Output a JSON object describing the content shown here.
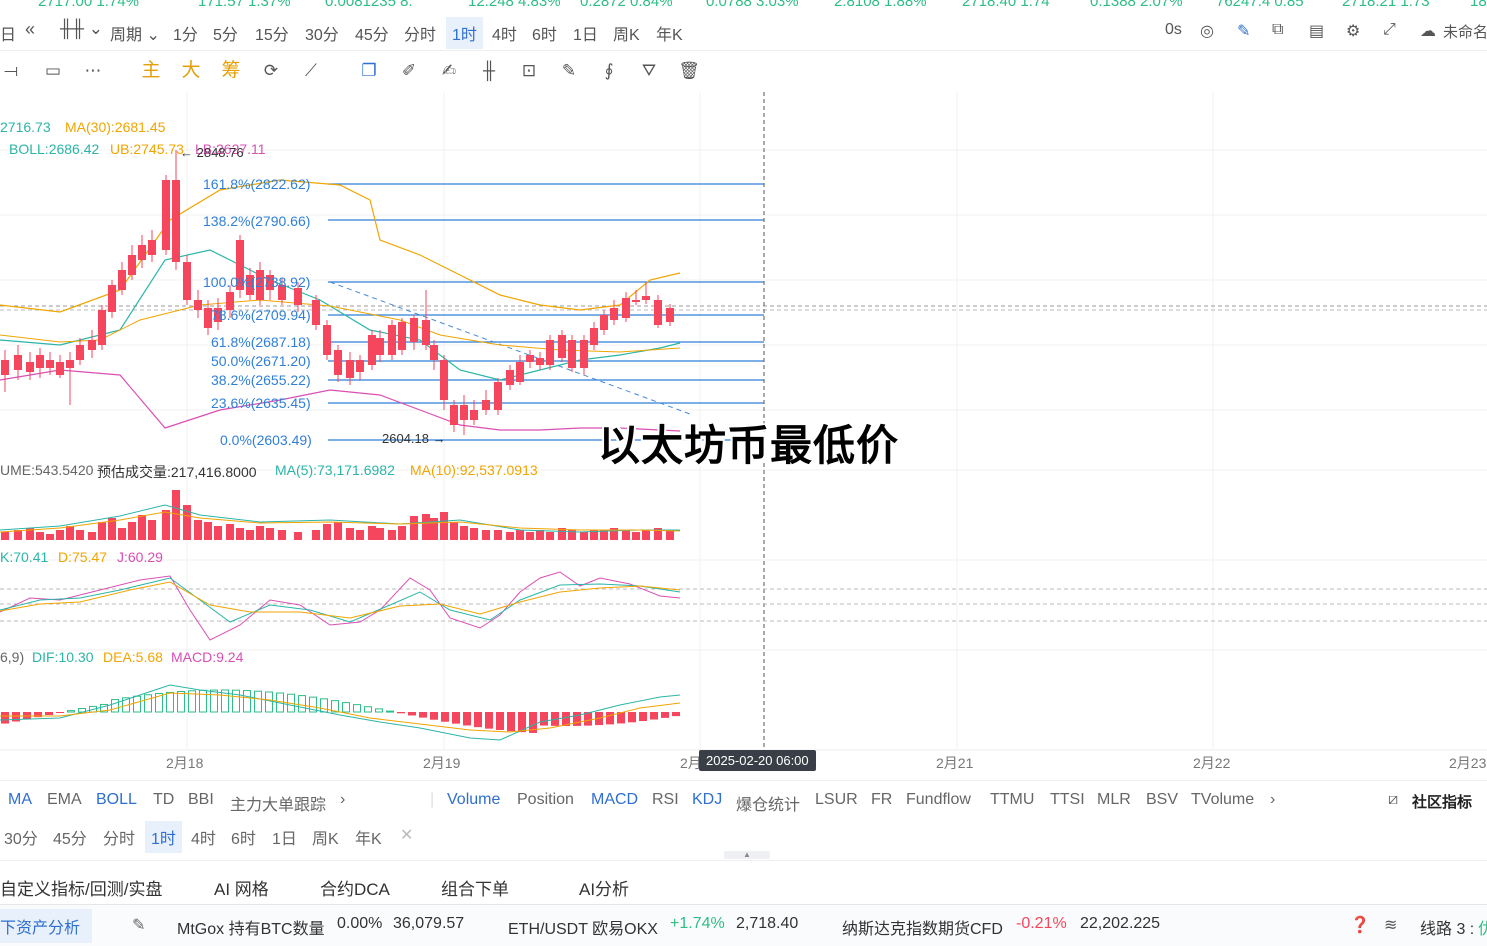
{
  "ticker": [
    "2717.00 1.74%",
    "171.57 1.37%",
    "0.0081235 8.",
    "12.248 4.83%",
    "0.2872 0.84%",
    "0.0788 3.03%",
    "2.8108 1.88%",
    "2718.40 1.74",
    "0.1388 2.07%",
    "76247.4 0.85",
    "2718.21 1.73",
    "18"
  ],
  "toolbar": {
    "left_glyph": "日",
    "period_label": "周期",
    "periods": [
      "1分",
      "5分",
      "15分",
      "30分",
      "45分",
      "分时",
      "1时",
      "4时",
      "6时",
      "1日",
      "周K",
      "年K"
    ],
    "selected_period": "1时",
    "countdown": "0s",
    "account": "未命名"
  },
  "tools": {
    "zhu": "主",
    "da": "大",
    "chou": "筹"
  },
  "indicators": {
    "ma_line": "2716.73",
    "ma30": "MA(30):2681.45",
    "boll": "BOLL:2686.42",
    "ub": "UB:2745.73",
    "lb": "LB:2627.11",
    "high_label": "← 2848.76",
    "low_label": "2604.18 →",
    "volume": "UME:543.5420",
    "est_volume": "预估成交量:217,416.8000",
    "vol_ma5": "MA(5):73,171.6982",
    "vol_ma10": "MA(10):92,537.0913",
    "kdj_k": "K:70.41",
    "kdj_d": "D:75.47",
    "kdj_j": "J:60.29",
    "macd_params": "6,9)",
    "dif": "DIF:10.30",
    "dea": "DEA:5.68",
    "macd": "MACD:9.24"
  },
  "fib": [
    {
      "label": "161.8%(2822.62)"
    },
    {
      "label": "138.2%(2790.66)"
    },
    {
      "label": "100.0%(2738.92)"
    },
    {
      "label": "78.6%(2709.94)"
    },
    {
      "label": "61.8%(2687.18)"
    },
    {
      "label": "50.0%(2671.20)"
    },
    {
      "label": "38.2%(2655.22)"
    },
    {
      "label": "23.6%(2635.45)"
    },
    {
      "label": "0.0%(2603.49)"
    }
  ],
  "x_axis": [
    "2月18",
    "2月19",
    "2月",
    "2月21",
    "2月22",
    "2月23"
  ],
  "crosshair_time": "2025-02-20 06:00",
  "overlay_title": "以太坊币最低价",
  "main_indicators": [
    "MA",
    "EMA",
    "BOLL",
    "TD",
    "BBI",
    "主力大单跟踪"
  ],
  "sub_indicators": [
    "Volume",
    "Position",
    "MACD",
    "RSI",
    "KDJ",
    "爆仓统计",
    "LSUR",
    "FR",
    "Fundflow",
    "TTMU",
    "TTSI",
    "MLR",
    "BSV",
    "TVolume"
  ],
  "community": "社区指标",
  "periods2": [
    "30分",
    "45分",
    "分时",
    "1时",
    "4时",
    "6时",
    "1日",
    "周K",
    "年K"
  ],
  "bottom_tabs": [
    "自定义指标/回测/实盘",
    "AI 网格",
    "合约DCA",
    "组合下单",
    "AI分析"
  ],
  "status": {
    "badge": "下资产分析",
    "mtgox_label": "MtGox 持有BTC数量",
    "mtgox_pct": "0.00%",
    "mtgox_val": "36,079.57",
    "eth_label": "ETH/USDT 欧易OKX",
    "eth_pct": "+1.74%",
    "eth_val": "2,718.40",
    "nasdaq_label": "纳斯达克指数期货CFD",
    "nasdaq_pct": "-0.21%",
    "nasdaq_val": "22,202.225",
    "line": "线路 3 :",
    "line_tail": "优"
  },
  "colors": {
    "up": "#2ebd85",
    "down": "#f6465d",
    "accent": "#2f6fd1",
    "fib": "#2f7fd8",
    "ma_orange": "#f0a500",
    "boll_mid": "#2bb5a8",
    "lb_pink": "#d94fb3"
  }
}
